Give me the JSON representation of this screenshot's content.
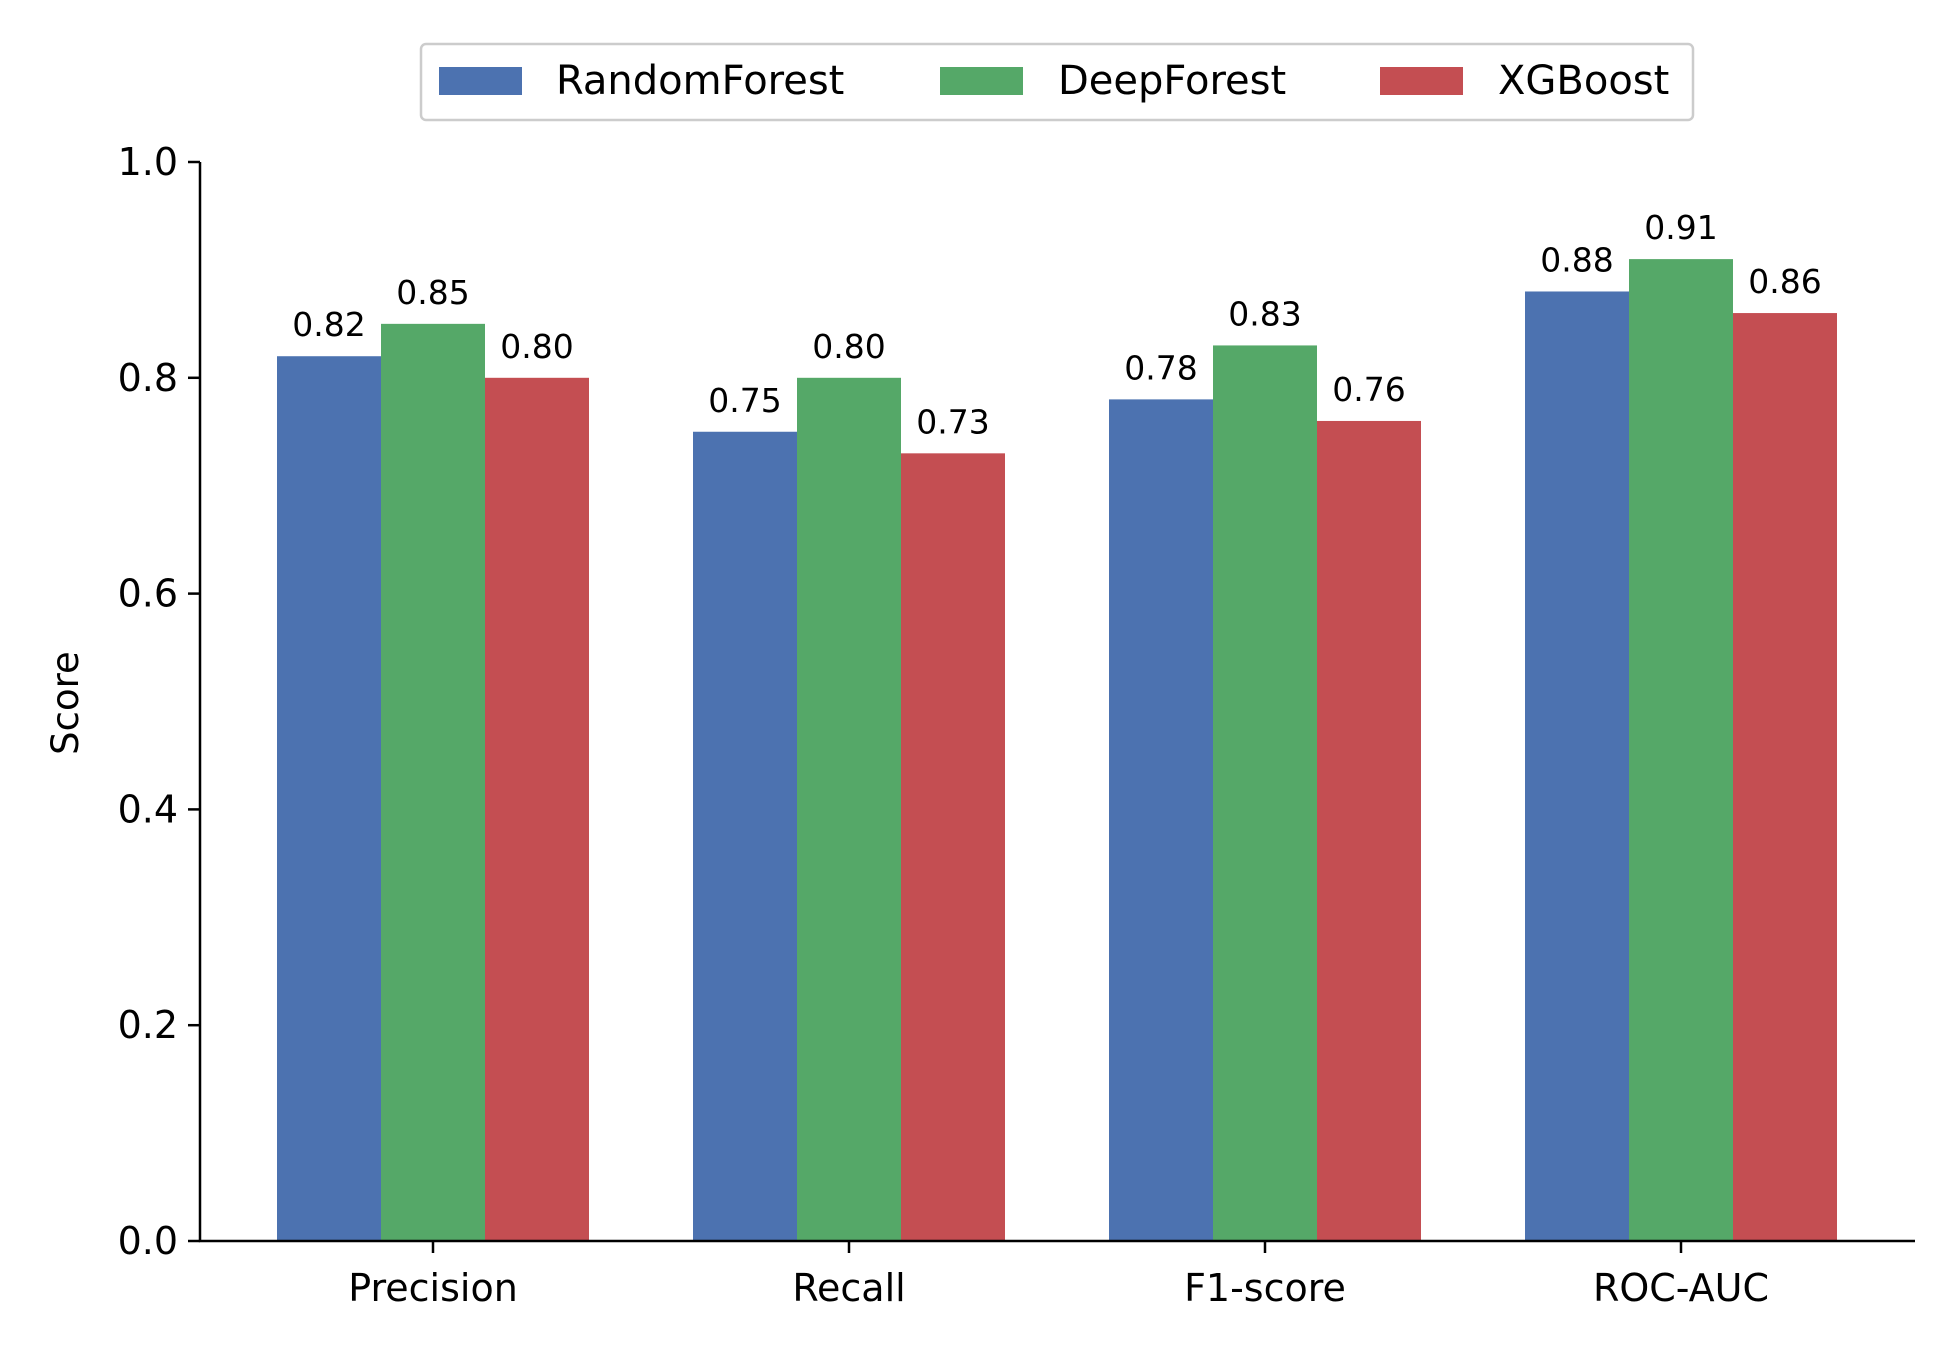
{
  "chart_data": {
    "type": "bar",
    "title": "",
    "xlabel": "",
    "ylabel": "Score",
    "ylim": [
      0,
      1.0
    ],
    "yticks": [
      0.0,
      0.2,
      0.4,
      0.6,
      0.8,
      1.0
    ],
    "ytick_labels": [
      "0.0",
      "0.2",
      "0.4",
      "0.6",
      "0.8",
      "1.0"
    ],
    "categories": [
      "Precision",
      "Recall",
      "F1-score",
      "ROC-AUC"
    ],
    "series": [
      {
        "name": "RandomForest",
        "color": "#4c72b0",
        "values": [
          0.82,
          0.75,
          0.78,
          0.88
        ],
        "labels": [
          "0.82",
          "0.75",
          "0.78",
          "0.88"
        ]
      },
      {
        "name": "DeepForest",
        "color": "#55a868",
        "values": [
          0.85,
          0.8,
          0.83,
          0.91
        ],
        "labels": [
          "0.85",
          "0.80",
          "0.83",
          "0.91"
        ]
      },
      {
        "name": "XGBoost",
        "color": "#c44e52",
        "values": [
          0.8,
          0.73,
          0.76,
          0.86
        ],
        "labels": [
          "0.80",
          "0.73",
          "0.76",
          "0.86"
        ]
      }
    ],
    "legend": "top-center",
    "grid": false
  }
}
